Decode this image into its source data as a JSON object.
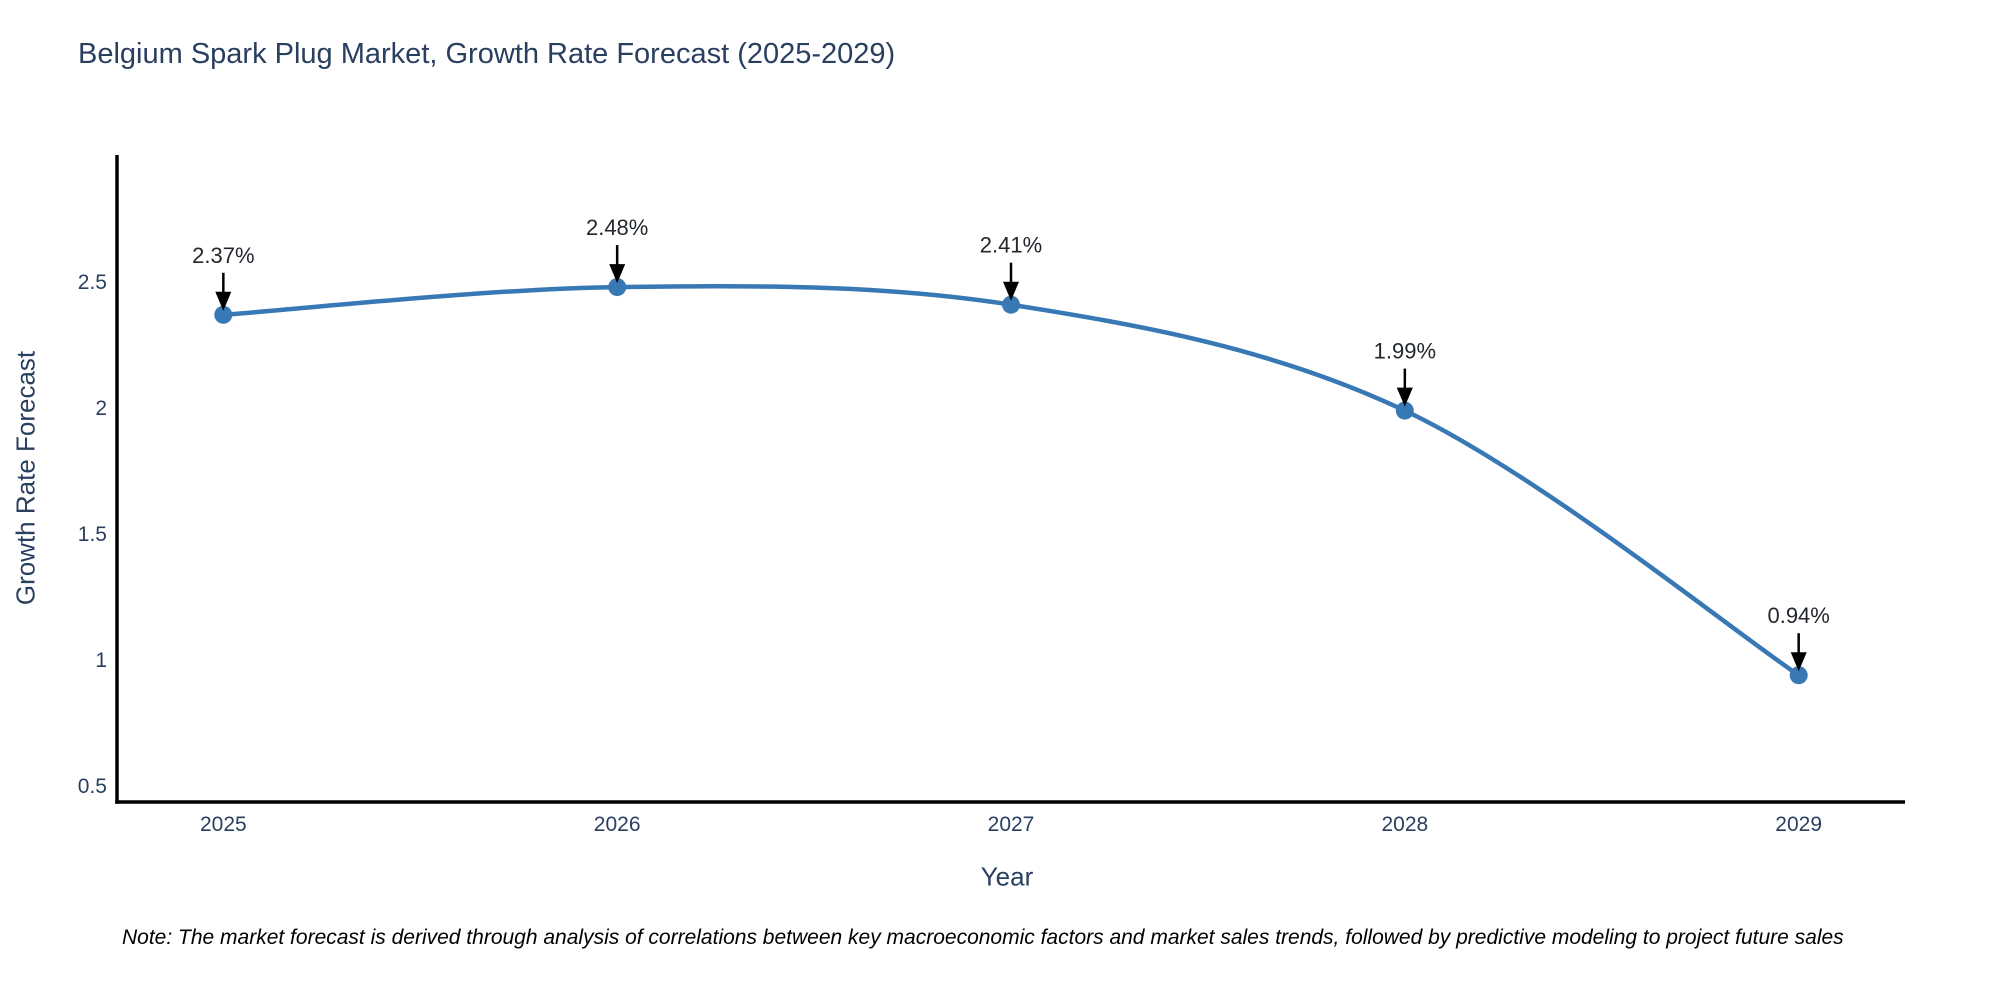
{
  "title": "Belgium Spark Plug Market, Growth Rate Forecast (2025-2029)",
  "note": "Note: The market forecast is derived through analysis of correlations between key macroeconomic factors and market sales trends, followed by predictive modeling to project future sales",
  "colors": {
    "text": "#2a3f5f",
    "line": "#3878b4",
    "marker": "#3878b4",
    "axis": "#000000",
    "arrow": "#000000",
    "annotation_text": "#23272e",
    "background": "#ffffff"
  },
  "chart_data": {
    "type": "line",
    "title": "Belgium Spark Plug Market, Growth Rate Forecast (2025-2029)",
    "xlabel": "Year",
    "ylabel": "Growth Rate Forecast",
    "x": [
      2025,
      2026,
      2027,
      2028,
      2029
    ],
    "y": [
      2.37,
      2.48,
      2.41,
      1.99,
      0.94
    ],
    "point_labels": [
      "2.37%",
      "2.48%",
      "2.41%",
      "1.99%",
      "0.94%"
    ],
    "x_tick_labels": [
      "2025",
      "2026",
      "2027",
      "2028",
      "2029"
    ],
    "y_ticks": [
      0.5,
      1,
      1.5,
      2,
      2.5
    ],
    "y_tick_labels": [
      "0.5",
      "1",
      "1.5",
      "2",
      "2.5"
    ],
    "x_range": [
      2024.73,
      2029.27
    ],
    "y_range": [
      0.437,
      3.004
    ],
    "line_shape": "spline",
    "markers": true,
    "grid": false,
    "legend": "none",
    "annotations": "black arrow pointing down from each percentage label to its data point"
  }
}
